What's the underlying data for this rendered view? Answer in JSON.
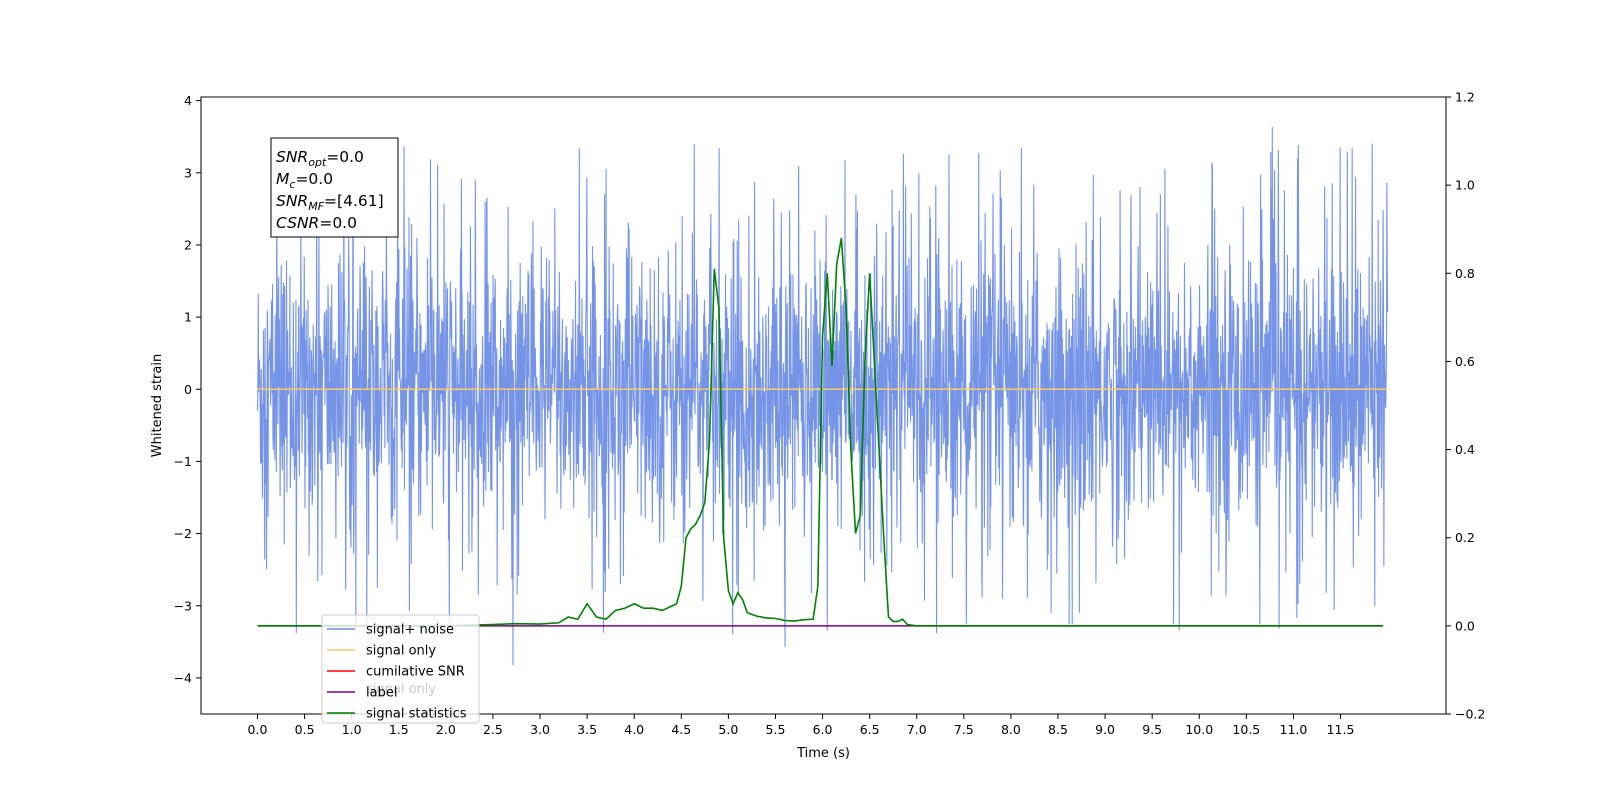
{
  "chart_data": {
    "type": "line",
    "xlabel": "Time (s)",
    "ylabel": "Whitened strain",
    "xlim": [
      -0.6,
      12.62
    ],
    "ylim_left": [
      -4.5,
      4.05
    ],
    "ylim_right": [
      -0.2,
      1.2
    ],
    "x_ticks": [
      0.0,
      0.5,
      1.0,
      1.5,
      2.0,
      2.5,
      3.0,
      3.5,
      4.0,
      4.5,
      5.0,
      5.5,
      6.0,
      6.5,
      7.0,
      7.5,
      8.0,
      8.5,
      9.0,
      9.5,
      10.0,
      10.5,
      11.0,
      11.5
    ],
    "x_tick_labels": [
      "0.0",
      "0.5",
      "1.0",
      "1.5",
      "2.0",
      "2.5",
      "3.0",
      "3.5",
      "4.0",
      "4.5",
      "5.0",
      "5.5",
      "6.0",
      "6.5",
      "7.0",
      "7.5",
      "8.0",
      "8.5",
      "9.0",
      "9.5",
      "10.0",
      "10.5",
      "11.0",
      "11.5"
    ],
    "y_left_ticks": [
      4,
      3,
      2,
      1,
      0,
      -1,
      -2,
      -3,
      -4
    ],
    "y_left_tick_labels": [
      "4",
      "3",
      "2",
      "1",
      "0",
      "−1",
      "−2",
      "−3",
      "−4"
    ],
    "y_right_ticks": [
      1.2,
      1.0,
      0.8,
      0.6,
      0.4,
      0.2,
      0.0,
      -0.2
    ],
    "y_right_tick_labels": [
      "1.2",
      "1.0",
      "0.8",
      "0.6",
      "0.4",
      "0.2",
      "0.0",
      "−0.2"
    ],
    "grid": false,
    "legend_position": "lower-left",
    "annotation": [
      {
        "base": "SNR",
        "sub": "opt",
        "value": "=0.0"
      },
      {
        "base": "M",
        "sub": "c",
        "value": "=0.0"
      },
      {
        "base": "SNR",
        "sub": "MF",
        "value": "=[4.61]"
      },
      {
        "base": "CSNR",
        "sub": "",
        "value": "=0.0"
      }
    ],
    "legend": [
      {
        "label": "signal+ noise",
        "color": "#6f8ee6"
      },
      {
        "label": "signal only",
        "color": "#ffc966"
      },
      {
        "label": "cumilative SNR",
        "color": "#ff0000"
      },
      {
        "label": "label",
        "color": "#800080"
      },
      {
        "label": "signal statistics",
        "color": "#008000"
      }
    ],
    "legend_hidden_text": "signal only",
    "series": [
      {
        "name": "signal+ noise",
        "axis": "left",
        "color": "#6f8ee6",
        "x_range": [
          0.0,
          12.0
        ],
        "noise_envelope": [
          -4.1,
          3.65
        ],
        "noise_std": 1.0
      },
      {
        "name": "signal only",
        "axis": "left",
        "color": "#ffc966",
        "x": [
          0.0,
          12.0
        ],
        "y": [
          0.0,
          0.0
        ]
      },
      {
        "name": "label",
        "axis": "right",
        "color": "#800080",
        "x": [
          0.0,
          11.95
        ],
        "y": [
          0.0,
          0.0
        ]
      },
      {
        "name": "signal statistics",
        "axis": "right",
        "color": "#008000",
        "x": [
          0.0,
          2.0,
          2.5,
          2.75,
          3.0,
          3.2,
          3.3,
          3.4,
          3.5,
          3.6,
          3.7,
          3.8,
          3.9,
          4.0,
          4.1,
          4.2,
          4.3,
          4.4,
          4.45,
          4.5,
          4.55,
          4.6,
          4.65,
          4.7,
          4.75,
          4.8,
          4.85,
          4.9,
          4.95,
          5.0,
          5.05,
          5.1,
          5.15,
          5.2,
          5.3,
          5.4,
          5.5,
          5.6,
          5.7,
          5.8,
          5.9,
          5.95,
          6.0,
          6.05,
          6.1,
          6.15,
          6.2,
          6.25,
          6.3,
          6.35,
          6.4,
          6.45,
          6.5,
          6.55,
          6.6,
          6.65,
          6.7,
          6.75,
          6.8,
          6.85,
          6.9,
          7.0,
          7.1,
          7.2,
          7.5,
          8.0,
          11.95
        ],
        "y": [
          0.0,
          0.0,
          0.003,
          0.005,
          0.004,
          0.007,
          0.02,
          0.015,
          0.05,
          0.02,
          0.015,
          0.035,
          0.04,
          0.05,
          0.04,
          0.04,
          0.035,
          0.045,
          0.05,
          0.09,
          0.2,
          0.22,
          0.23,
          0.25,
          0.28,
          0.42,
          0.81,
          0.72,
          0.2,
          0.08,
          0.05,
          0.075,
          0.06,
          0.03,
          0.022,
          0.018,
          0.017,
          0.012,
          0.011,
          0.014,
          0.015,
          0.09,
          0.66,
          0.8,
          0.59,
          0.82,
          0.88,
          0.72,
          0.4,
          0.21,
          0.25,
          0.6,
          0.8,
          0.6,
          0.4,
          0.2,
          0.02,
          0.01,
          0.01,
          0.015,
          0.003,
          0.0,
          0.0,
          0.0,
          0.0,
          0.0,
          0.0
        ]
      }
    ]
  }
}
